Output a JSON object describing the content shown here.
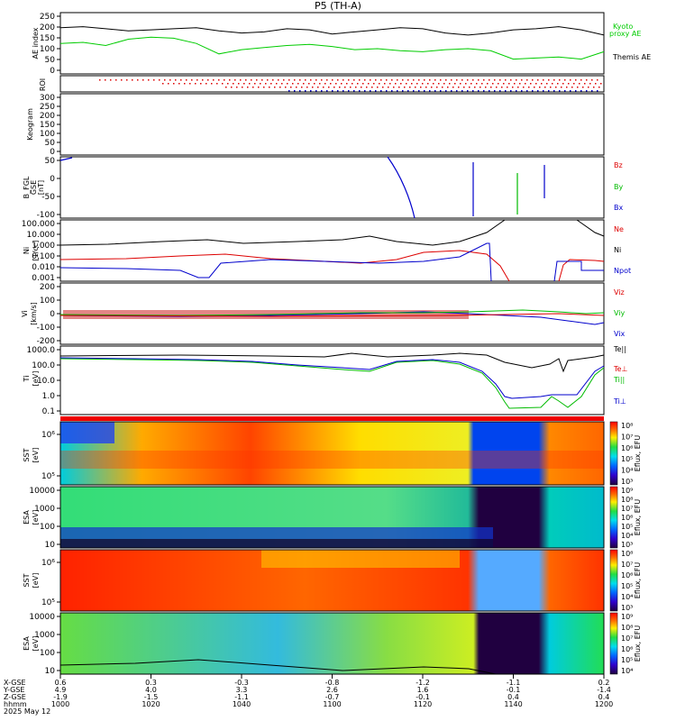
{
  "title": "P5 (TH-A)",
  "colors": {
    "thm_ae": "#000000",
    "kyoto": "#00cc00",
    "bz": "#dd0000",
    "by": "#00bb00",
    "bx": "#0000cc",
    "te": "#000000"
  },
  "panels": {
    "ae": {
      "ylabel": "AE index",
      "ticks": [
        "250",
        "200",
        "150",
        "100",
        "50",
        "0"
      ],
      "legend": [
        "Kyoto",
        "proxy AE",
        "Themis AE"
      ]
    },
    "roi": {
      "ylabel": "ROI"
    },
    "keogram": {
      "ylabel": "Keogram",
      "ticks": [
        "300",
        "250",
        "200",
        "150",
        "100",
        "50",
        "0"
      ]
    },
    "bfgl": {
      "ylabel_lines": [
        "B_FGL",
        "GSE",
        "[nT]"
      ],
      "ticks": [
        "50",
        "0",
        "-50",
        "-100"
      ],
      "legend": [
        "Bz",
        "By",
        "Bx"
      ]
    },
    "ni": {
      "ylabel_lines": [
        "Ni",
        "[1/cc]"
      ],
      "ticks": [
        "100.000",
        "10.000",
        "1.000",
        "0.100",
        "0.010",
        "0.001"
      ],
      "legend": [
        "Ne",
        "Ni",
        "Npot"
      ]
    },
    "vi": {
      "ylabel_lines": [
        "Vi",
        "[km/s]"
      ],
      "ticks": [
        "200",
        "100",
        "0",
        "-100",
        "-200"
      ],
      "legend": [
        "Viz",
        "Viy",
        "Vix"
      ]
    },
    "ti": {
      "ylabel_lines": [
        "Ti",
        "[eV]"
      ],
      "ticks": [
        "1000.0",
        "100.0",
        "10.0",
        "1.0",
        "0.1"
      ],
      "legend": [
        "Te||",
        "Te⊥",
        "Ti||",
        "Ti⊥"
      ]
    },
    "sst_e": {
      "ylabel_lines": [
        "SST",
        "[eV]"
      ],
      "ticks": [
        "10⁶",
        "10⁵"
      ],
      "cb_label": "Eflux, EFU",
      "cb_ticks": [
        "10⁸",
        "10⁷",
        "10⁶",
        "10⁵",
        "10⁴",
        "10³"
      ]
    },
    "esa_e": {
      "ylabel_lines": [
        "ESA",
        "[eV]"
      ],
      "ticks": [
        "10000",
        "1000",
        "100",
        "10"
      ],
      "cb_label": "Eflux, EFU",
      "cb_ticks": [
        "10⁹",
        "10⁸",
        "10⁷",
        "10⁶",
        "10⁵",
        "10⁴",
        "10³"
      ]
    },
    "sst_i": {
      "ylabel_lines": [
        "SST",
        "[eV]"
      ],
      "ticks": [
        "10⁶",
        "10⁵"
      ],
      "cb_label": "Eflux, EFU",
      "cb_ticks": [
        "10⁸",
        "10⁷",
        "10⁶",
        "10⁵",
        "10⁴",
        "10³"
      ]
    },
    "esa_i": {
      "ylabel_lines": [
        "ESA",
        "[eV]"
      ],
      "ticks": [
        "10000",
        "1000",
        "100",
        "10"
      ],
      "cb_label": "Eflux, EFU",
      "cb_ticks": [
        "10⁹",
        "10⁸",
        "10⁷",
        "10⁶",
        "10⁵",
        "10⁴"
      ]
    }
  },
  "bottom": {
    "row_labels": [
      "X-GSE",
      "Y-GSE",
      "Z-GSE",
      "hhmm",
      "2025 May 12"
    ],
    "columns": [
      {
        "x": "0.6",
        "y": "4.9",
        "z": "-1.9",
        "t": "1000"
      },
      {
        "x": "0.3",
        "y": "4.0",
        "z": "-1.5",
        "t": "1020"
      },
      {
        "x": "-0.3",
        "y": "3.3",
        "z": "-1.1",
        "t": "1040"
      },
      {
        "x": "-0.8",
        "y": "2.6",
        "z": "-0.7",
        "t": "1100"
      },
      {
        "x": "-1.2",
        "y": "1.6",
        "z": "-0.1",
        "t": "1120"
      },
      {
        "x": "-1.1",
        "y": "-0.1",
        "z": "0.4",
        "t": "1140"
      },
      {
        "x": "0.2",
        "y": "-1.4",
        "z": "0.4",
        "t": "1200"
      }
    ]
  },
  "chart_data": {
    "type": "line",
    "title": "P5 (TH-A)",
    "x_ticks": [
      "1000",
      "1020",
      "1040",
      "1100",
      "1120",
      "1140",
      "1200"
    ],
    "x_range": [
      0,
      120
    ],
    "series": [
      {
        "name": "Themis AE",
        "x": [
          0,
          5,
          10,
          15,
          20,
          25,
          30,
          35,
          40,
          45,
          50,
          55,
          60,
          65,
          70,
          75,
          80,
          85,
          90,
          95,
          100,
          105,
          110,
          115,
          120
        ],
        "values": [
          195,
          200,
          190,
          180,
          185,
          190,
          195,
          180,
          170,
          175,
          190,
          185,
          165,
          175,
          185,
          195,
          190,
          170,
          160,
          170,
          185,
          190,
          200,
          185,
          160
        ]
      },
      {
        "name": "Kyoto proxy AE",
        "x": [
          0,
          5,
          10,
          15,
          20,
          25,
          30,
          35,
          40,
          45,
          50,
          55,
          60,
          65,
          70,
          75,
          80,
          85,
          90,
          95,
          100,
          105,
          110,
          115,
          120
        ],
        "values": [
          120,
          125,
          110,
          140,
          150,
          145,
          120,
          70,
          90,
          100,
          110,
          115,
          105,
          90,
          95,
          85,
          80,
          90,
          95,
          85,
          45,
          50,
          55,
          45,
          80
        ]
      }
    ],
    "ylim": [
      0,
      250
    ]
  }
}
